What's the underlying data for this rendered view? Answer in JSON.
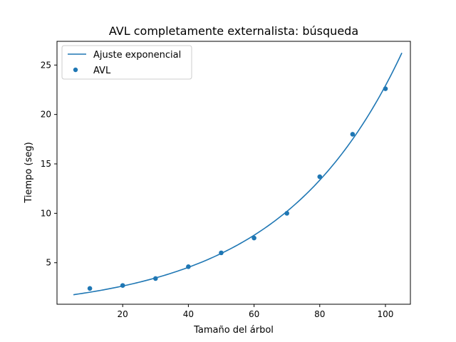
{
  "chart_data": {
    "type": "scatter",
    "title": "AVL completamente externalista: búsqueda",
    "xlabel": "Tamaño del árbol",
    "ylabel": "Tiempo (seg)",
    "xlim": [
      0,
      107.6
    ],
    "ylim": [
      0.8,
      27.4
    ],
    "xticks": [
      20,
      40,
      60,
      80,
      100
    ],
    "yticks": [
      5,
      10,
      15,
      20,
      25
    ],
    "grid": false,
    "legend_position": "top-left",
    "series": [
      {
        "name": "Ajuste exponencial",
        "kind": "line",
        "color": "#1f77b4",
        "model": {
          "a": 1.54,
          "b": 0.027,
          "x_start": 5,
          "x_end": 105
        }
      },
      {
        "name": "AVL",
        "kind": "scatter",
        "color": "#1f77b4",
        "x": [
          10,
          20,
          30,
          40,
          50,
          60,
          70,
          80,
          90,
          100
        ],
        "y": [
          2.4,
          2.7,
          3.4,
          4.6,
          6.0,
          7.5,
          10.0,
          13.7,
          18.0,
          22.6
        ]
      }
    ]
  }
}
